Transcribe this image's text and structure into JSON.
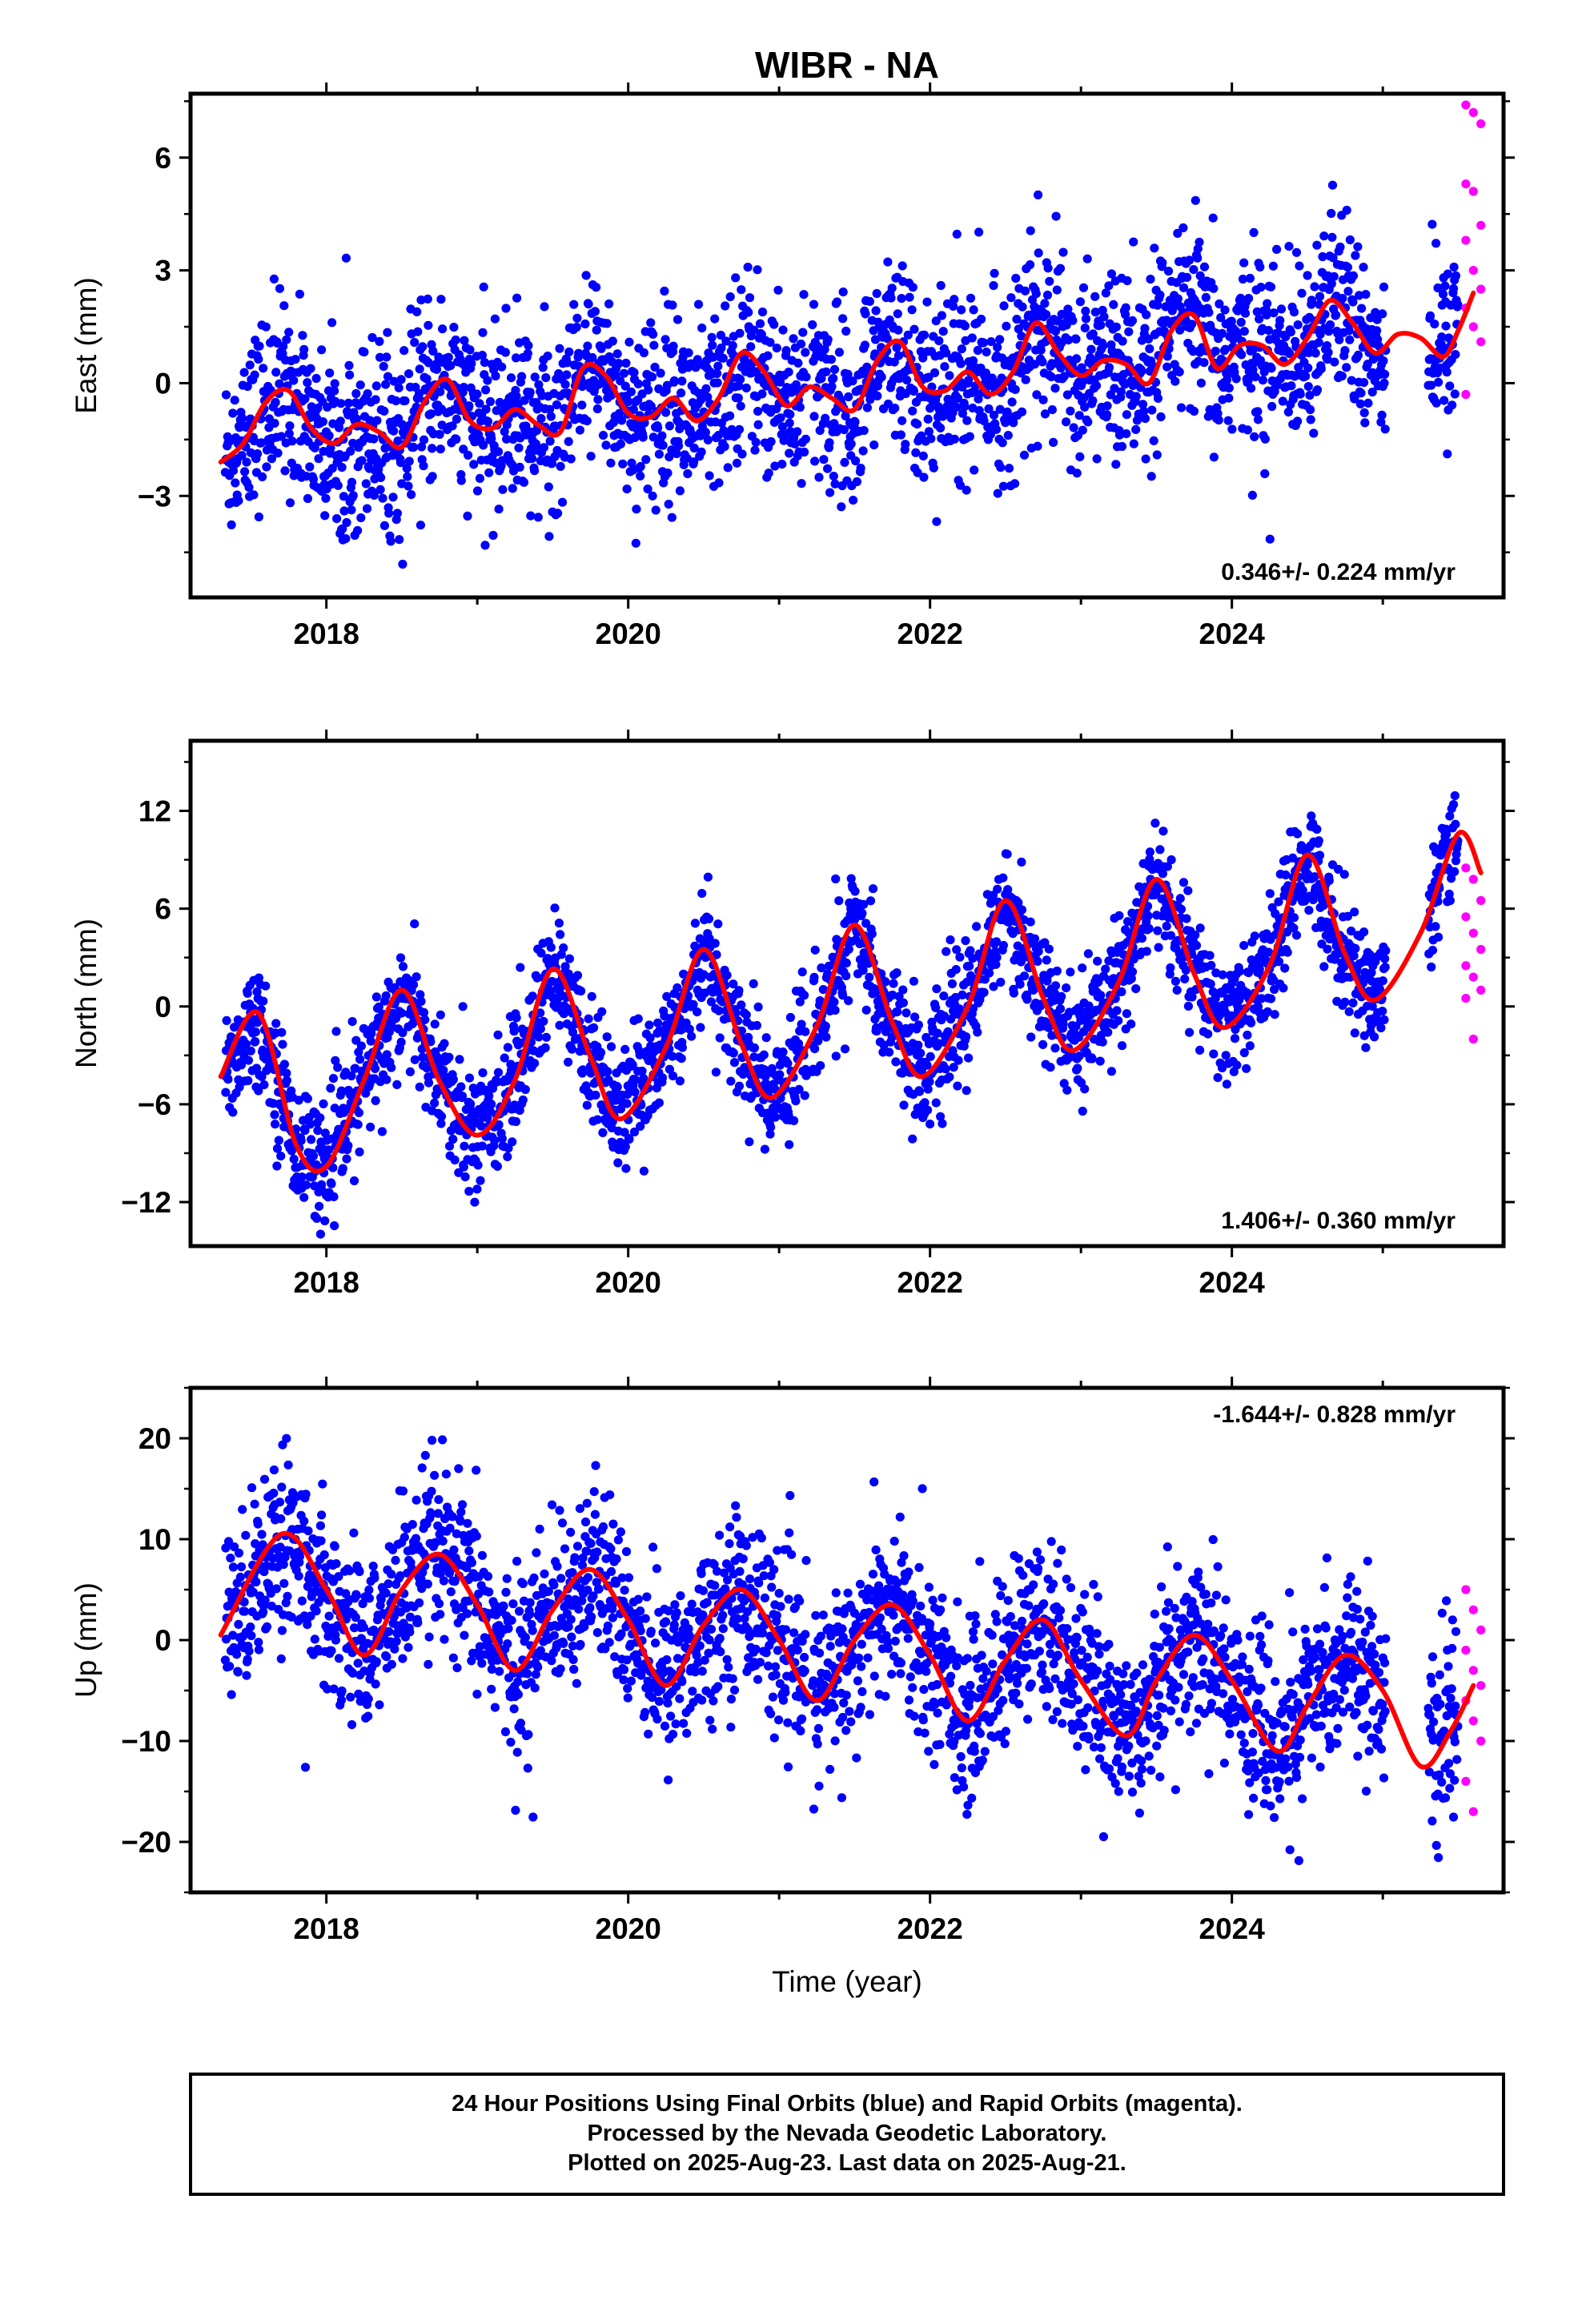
{
  "figure_title": "WIBR - NA",
  "xlabel": "Time (year)",
  "footer": {
    "line1": "24 Hour Positions Using Final Orbits (blue) and Rapid Orbits (magenta).",
    "line2": "Processed by the Nevada Geodetic Laboratory.",
    "line3": "Plotted on 2025-Aug-23. Last data on 2025-Aug-21."
  },
  "colors": {
    "final": "#0000ff",
    "rapid": "#ff00ff",
    "fit": "#ff0000",
    "frame": "#000000"
  },
  "chart_data": [
    {
      "type": "scatter",
      "component": "east",
      "ylabel": "East (mm)",
      "rate_label": "0.346+/- 0.224 mm/yr",
      "rate_position": "bottom-right",
      "xlim": [
        2017.1,
        2025.8
      ],
      "ylim": [
        -5.7,
        7.7
      ],
      "xticks": [
        2018,
        2020,
        2022,
        2024
      ],
      "xtick_labels": [
        "2018",
        "2020",
        "2022",
        "2024"
      ],
      "yticks": [
        -3,
        0,
        3,
        6
      ],
      "ytick_labels": [
        "−3",
        "0",
        "3",
        "6"
      ],
      "fit": {
        "x": [
          2017.3,
          2017.45,
          2017.6,
          2017.75,
          2017.9,
          2018.05,
          2018.2,
          2018.35,
          2018.5,
          2018.65,
          2018.8,
          2018.95,
          2019.1,
          2019.25,
          2019.4,
          2019.55,
          2019.7,
          2019.85,
          2020.0,
          2020.15,
          2020.3,
          2020.45,
          2020.6,
          2020.75,
          2020.9,
          2021.05,
          2021.2,
          2021.35,
          2021.5,
          2021.65,
          2021.8,
          2021.95,
          2022.1,
          2022.25,
          2022.4,
          2022.55,
          2022.7,
          2022.85,
          2023.0,
          2023.15,
          2023.3,
          2023.45,
          2023.6,
          2023.75,
          2023.9,
          2024.05,
          2024.2,
          2024.35,
          2024.5,
          2024.65,
          2024.8,
          2024.95,
          2025.1,
          2025.25,
          2025.4,
          2025.5,
          2025.6
        ],
        "y": [
          -2.1,
          -1.6,
          -0.5,
          -0.2,
          -1.2,
          -1.6,
          -1.1,
          -1.3,
          -1.7,
          -0.5,
          0.1,
          -1.0,
          -1.2,
          -0.7,
          -1.1,
          -1.3,
          0.4,
          0.2,
          -0.8,
          -0.9,
          -0.4,
          -1.0,
          -0.4,
          0.8,
          0.3,
          -0.6,
          -0.1,
          -0.4,
          -0.7,
          0.6,
          1.1,
          -0.1,
          -0.2,
          0.3,
          -0.3,
          0.3,
          1.6,
          0.8,
          0.2,
          0.6,
          0.5,
          0.0,
          1.4,
          1.8,
          0.4,
          1.0,
          1.0,
          0.5,
          1.2,
          2.2,
          1.6,
          0.8,
          1.3,
          1.2,
          0.7,
          1.4,
          2.4
        ]
      },
      "final_count": 2600,
      "rapid_values": [
        7.4,
        7.2,
        6.9,
        5.3,
        5.1,
        4.2,
        3.8,
        3.0,
        2.5,
        2.0,
        1.5,
        1.1,
        -0.3
      ],
      "rapid_x": [
        2025.55,
        2025.65
      ],
      "noise_sd": 1.2
    },
    {
      "type": "scatter",
      "component": "north",
      "ylabel": "North (mm)",
      "rate_label": "1.406+/- 0.360 mm/yr",
      "rate_position": "bottom-right",
      "xlim": [
        2017.1,
        2025.8
      ],
      "ylim": [
        -14.7,
        16.3
      ],
      "xticks": [
        2018,
        2020,
        2022,
        2024
      ],
      "xtick_labels": [
        "2018",
        "2020",
        "2022",
        "2024"
      ],
      "yticks": [
        -12,
        -6,
        0,
        6,
        12
      ],
      "ytick_labels": [
        "−12",
        "−6",
        "0",
        "6",
        "12"
      ],
      "fit": {
        "x": [
          2017.3,
          2017.55,
          2017.8,
          2018.0,
          2018.25,
          2018.5,
          2018.75,
          2019.0,
          2019.25,
          2019.5,
          2019.75,
          2019.95,
          2020.25,
          2020.5,
          2020.75,
          2020.95,
          2021.25,
          2021.5,
          2021.75,
          2021.95,
          2022.25,
          2022.5,
          2022.75,
          2022.95,
          2023.25,
          2023.5,
          2023.75,
          2023.95,
          2024.25,
          2024.5,
          2024.75,
          2024.95,
          2025.25,
          2025.5,
          2025.65
        ],
        "y": [
          -4.3,
          -0.4,
          -8.5,
          -9.8,
          -4.5,
          1.0,
          -4.6,
          -7.9,
          -4.5,
          2.3,
          -3.1,
          -6.9,
          -2.5,
          3.5,
          -2.3,
          -5.6,
          -1.2,
          5.0,
          -1.0,
          -4.3,
          0.0,
          6.5,
          0.5,
          -2.7,
          1.5,
          7.8,
          2.0,
          -1.3,
          2.5,
          9.3,
          3.2,
          0.4,
          4.5,
          10.6,
          8.2
        ]
      },
      "final_count": 2600,
      "rapid_values": [
        8.5,
        7.8,
        6.5,
        5.5,
        4.5,
        3.5,
        2.5,
        1.8,
        1.0,
        0.5,
        -2.0
      ],
      "rapid_x": [
        2025.55,
        2025.65
      ],
      "noise_sd": 1.8
    },
    {
      "type": "scatter",
      "component": "up",
      "ylabel": "Up (mm)",
      "rate_label": "-1.644+/- 0.828 mm/yr",
      "rate_position": "top-right",
      "xlim": [
        2017.1,
        2025.8
      ],
      "ylim": [
        -25,
        25
      ],
      "xticks": [
        2018,
        2020,
        2022,
        2024
      ],
      "xtick_labels": [
        "2018",
        "2020",
        "2022",
        "2024"
      ],
      "yticks": [
        -20,
        -10,
        0,
        10,
        20
      ],
      "ytick_labels": [
        "−20",
        "−10",
        "0",
        "10",
        "20"
      ],
      "fit": {
        "x": [
          2017.3,
          2017.7,
          2018.0,
          2018.25,
          2018.5,
          2018.75,
          2019.0,
          2019.25,
          2019.5,
          2019.75,
          2020.0,
          2020.25,
          2020.5,
          2020.75,
          2021.0,
          2021.25,
          2021.5,
          2021.75,
          2022.0,
          2022.25,
          2022.5,
          2022.75,
          2023.0,
          2023.3,
          2023.5,
          2023.75,
          2024.0,
          2024.3,
          2024.5,
          2024.75,
          2025.0,
          2025.25,
          2025.45,
          2025.6
        ],
        "y": [
          0.5,
          10.5,
          5.0,
          -1.5,
          5.0,
          8.5,
          3.5,
          -3.0,
          3.0,
          7.0,
          2.0,
          -4.5,
          1.5,
          5.0,
          0.0,
          -6.0,
          0.0,
          3.5,
          -1.5,
          -8.0,
          -2.0,
          2.0,
          -4.0,
          -9.5,
          -4.0,
          0.5,
          -4.0,
          -11.0,
          -6.5,
          -1.5,
          -5.0,
          -12.5,
          -9.0,
          -4.5
        ]
      },
      "final_count": 2600,
      "rapid_values": [
        5.0,
        3.0,
        1.0,
        -1.0,
        -3.0,
        -4.5,
        -6.0,
        -8.0,
        -10.0,
        -14.0,
        -17.0
      ],
      "rapid_x": [
        2025.55,
        2025.65
      ],
      "noise_sd": 4.2
    }
  ]
}
